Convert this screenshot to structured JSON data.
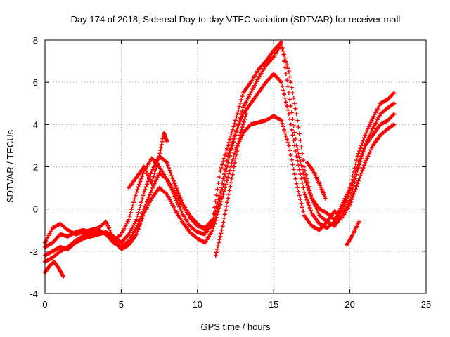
{
  "chart_data": {
    "type": "scatter",
    "title": "Day 174 of 2018, Sidereal Day-to-day VTEC variation (SDTVAR) for receiver mall",
    "xlabel": "GPS time / hours",
    "ylabel": "SDTVAR / TECUs",
    "xlim": [
      0,
      25
    ],
    "ylim": [
      -4,
      8
    ],
    "xticks": [
      "0",
      "5",
      "10",
      "15",
      "20",
      "25"
    ],
    "yticks": [
      "-4",
      "-2",
      "0",
      "2",
      "4",
      "6",
      "8"
    ],
    "grid": true,
    "legend": "none",
    "marker": "+",
    "colors": {
      "series": "#ff0000",
      "axis": "#000000",
      "grid": "#a0a0a0"
    },
    "series": [
      {
        "name": "track-1",
        "x": [
          0.0,
          0.5,
          1.0,
          1.5,
          2.0,
          2.5,
          3.0,
          3.5,
          4.0,
          4.5,
          5.0,
          5.5,
          6.0,
          6.5,
          7.0,
          7.5,
          8.0,
          8.5,
          9.0,
          9.5,
          10.0,
          10.5,
          11.0,
          11.5,
          12.0,
          12.5,
          13.0,
          13.5,
          14.0,
          14.5,
          15.0,
          15.5,
          16.0,
          16.5,
          17.0,
          17.5,
          18.0,
          18.5,
          19.0,
          19.5,
          20.0,
          20.5,
          21.0,
          21.5,
          22.0,
          22.5,
          22.9
        ],
        "y": [
          -1.8,
          -1.6,
          -1.2,
          -1.3,
          -1.1,
          -1.0,
          -1.1,
          -1.0,
          -1.2,
          -1.5,
          -1.2,
          -0.5,
          0.8,
          1.8,
          2.4,
          2.0,
          1.4,
          0.8,
          0.2,
          -0.4,
          -0.8,
          -0.9,
          -0.5,
          1.8,
          3.0,
          4.2,
          5.5,
          6.0,
          6.6,
          7.0,
          7.5,
          7.9,
          5.5,
          3.0,
          1.5,
          0.5,
          0.0,
          -0.2,
          -0.5,
          0.2,
          1.0,
          2.5,
          3.5,
          4.3,
          5.0,
          5.2,
          5.5
        ]
      },
      {
        "name": "track-2",
        "x": [
          0.0,
          0.5,
          1.0,
          1.5,
          2.0,
          2.5,
          3.0,
          3.5,
          4.0,
          4.5,
          5.0,
          5.5,
          6.0,
          6.5,
          7.0,
          7.5,
          8.0,
          8.5,
          9.0,
          9.5,
          10.0,
          10.5,
          11.0,
          11.5,
          12.0,
          12.5,
          13.0,
          13.5,
          14.0,
          14.5,
          15.0,
          15.5,
          16.0,
          16.5,
          17.0,
          17.5,
          18.0,
          18.5,
          19.0,
          19.5,
          20.0,
          20.5,
          21.0,
          21.5,
          22.0,
          22.5,
          22.9
        ],
        "y": [
          -2.2,
          -2.0,
          -1.8,
          -1.9,
          -1.6,
          -1.4,
          -1.3,
          -1.2,
          -1.1,
          -1.3,
          -1.6,
          -1.2,
          -0.5,
          0.8,
          1.8,
          2.5,
          2.2,
          1.2,
          0.3,
          -0.3,
          -0.7,
          -1.0,
          -0.8,
          0.5,
          2.2,
          3.5,
          4.8,
          5.5,
          6.2,
          6.8,
          7.2,
          7.8,
          6.5,
          4.5,
          2.0,
          0.5,
          -0.3,
          -0.6,
          -0.8,
          -0.3,
          0.4,
          1.8,
          3.0,
          3.8,
          4.5,
          4.8,
          5.0
        ]
      },
      {
        "name": "track-3",
        "x": [
          0.0,
          0.5,
          1.0,
          1.5,
          2.0,
          2.5,
          3.0,
          3.5,
          4.0,
          4.5,
          5.0,
          5.5,
          6.0,
          6.5,
          7.0,
          7.5,
          8.0,
          8.5,
          9.0,
          9.5,
          10.0,
          10.5,
          11.0,
          11.5,
          12.0,
          12.5,
          13.0,
          13.5,
          14.0,
          14.5,
          15.0,
          15.5,
          16.0,
          16.5,
          17.0,
          17.5,
          18.0,
          18.5,
          19.0,
          19.5,
          20.0,
          20.5,
          21.0,
          21.5,
          22.0,
          22.5,
          22.9
        ],
        "y": [
          -2.5,
          -2.3,
          -2.0,
          -1.8,
          -1.5,
          -1.3,
          -1.1,
          -1.0,
          -1.2,
          -1.6,
          -1.8,
          -1.5,
          -0.9,
          0.0,
          0.9,
          1.7,
          1.4,
          0.6,
          -0.2,
          -0.8,
          -1.1,
          -1.2,
          -0.6,
          0.8,
          2.5,
          3.6,
          4.5,
          5.0,
          5.5,
          6.0,
          6.4,
          6.0,
          4.5,
          2.5,
          0.8,
          -0.2,
          -0.7,
          -0.9,
          -0.6,
          0.0,
          0.8,
          2.0,
          3.0,
          3.5,
          4.0,
          4.2,
          4.5
        ]
      },
      {
        "name": "track-4",
        "x": [
          0.0,
          0.5,
          1.0,
          1.5,
          2.0,
          2.5,
          3.0,
          3.5,
          4.0,
          4.5,
          5.0,
          5.5,
          6.0,
          6.5,
          7.0,
          7.5,
          8.0,
          8.5,
          9.0,
          9.5,
          10.0,
          10.5,
          11.0,
          11.5,
          12.0,
          12.5,
          13.0,
          13.5,
          14.0,
          14.5,
          15.0,
          15.5,
          16.0,
          16.5,
          17.0,
          17.5,
          18.0,
          18.5,
          19.0,
          19.5,
          20.0,
          20.5,
          21.0,
          21.5,
          22.0,
          22.5,
          22.9
        ],
        "y": [
          -1.6,
          -0.9,
          -0.7,
          -1.0,
          -1.2,
          -1.1,
          -1.0,
          -0.9,
          -0.6,
          -1.4,
          -1.9,
          -1.7,
          -1.2,
          -0.2,
          0.5,
          1.0,
          0.7,
          0.0,
          -0.6,
          -1.1,
          -1.4,
          -1.6,
          -1.0,
          0.2,
          1.5,
          2.8,
          3.6,
          4.0,
          4.1,
          4.2,
          4.4,
          4.2,
          3.0,
          1.2,
          -0.3,
          -0.8,
          -1.0,
          -0.6,
          -0.1,
          -0.4,
          0.2,
          1.2,
          2.2,
          3.0,
          3.5,
          3.8,
          4.0
        ]
      },
      {
        "name": "track-5",
        "x": [
          0.0,
          0.3,
          0.6,
          0.9,
          1.2,
          5.5,
          6.0,
          6.5,
          7.0,
          7.5,
          7.8,
          8.0,
          11.2,
          11.6,
          12.0,
          12.4,
          12.8,
          13.2,
          17.2,
          17.6,
          18.0,
          18.4,
          19.8,
          20.2,
          20.6
        ],
        "y": [
          -3.0,
          -2.7,
          -2.5,
          -2.8,
          -3.2,
          1.0,
          1.5,
          2.0,
          1.2,
          2.5,
          3.6,
          3.2,
          -2.2,
          -1.0,
          0.5,
          2.0,
          3.5,
          4.5,
          2.2,
          1.8,
          1.2,
          0.5,
          -1.7,
          -1.2,
          -0.6
        ]
      }
    ]
  }
}
